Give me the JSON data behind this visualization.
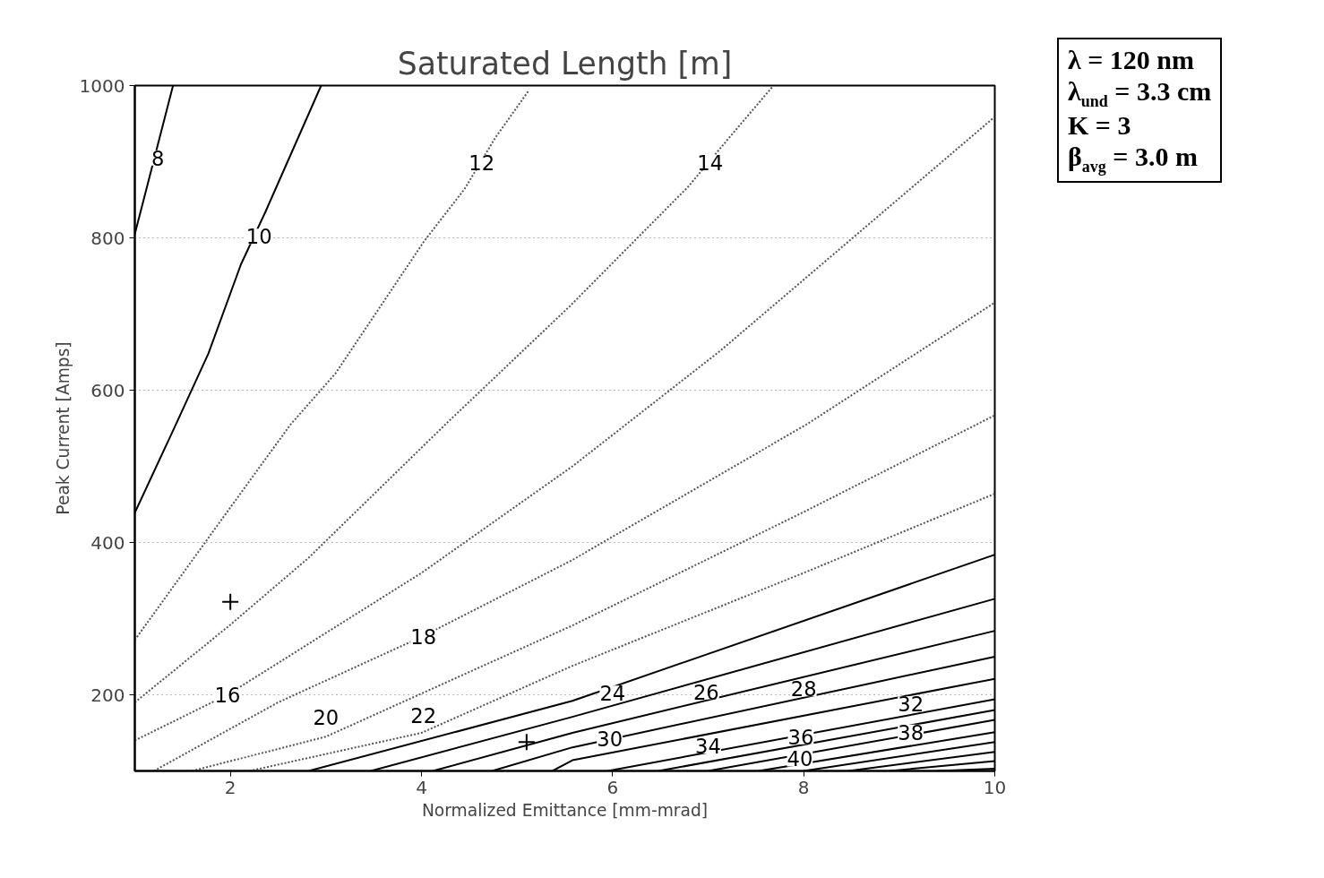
{
  "chart_data": {
    "type": "line",
    "title": "Saturated Length [m]",
    "xlabel": "Normalized Emittance [mm-mrad]",
    "ylabel": "Peak Current [Amps]",
    "xlim": [
      1,
      10
    ],
    "ylim": [
      100,
      1000
    ],
    "xticks": [
      2,
      4,
      6,
      8,
      10
    ],
    "yticks": [
      200,
      400,
      600,
      800,
      1000
    ],
    "grid": "y",
    "series": [
      {
        "color": "#000000",
        "line_style": "solid",
        "x": [
          1.0,
          1.4
        ],
        "values": [
          805,
          1000
        ]
      },
      {
        "color": "#000000",
        "line_style": "solid",
        "x": [
          1.0,
          1.4,
          1.77,
          2.11,
          2.37,
          2.95
        ],
        "values": [
          439,
          547,
          648,
          765,
          835,
          1000
        ]
      },
      {
        "color": "#555555",
        "line_style": "dotted",
        "x": [
          1.0,
          2.0,
          2.63,
          3.1,
          4.03,
          4.45,
          4.77,
          5.12
        ],
        "values": [
          272,
          446,
          555,
          622,
          796,
          864,
          931,
          993
        ]
      },
      {
        "color": "#555555",
        "line_style": "dotted",
        "x": [
          1.0,
          2.0,
          2.82,
          4.25,
          5.55,
          6.79,
          7.21,
          7.67
        ],
        "values": [
          190,
          292,
          380,
          555,
          710,
          867,
          930,
          998
        ]
      },
      {
        "color": "#555555",
        "line_style": "dotted",
        "x": [
          1.0,
          1.97,
          4.0,
          5.58,
          7.13,
          10
        ],
        "values": [
          140,
          200,
          360,
          500,
          652,
          959
        ]
      },
      {
        "color": "#555555",
        "line_style": "dotted",
        "x": [
          1.2,
          2.5,
          4.0,
          5.58,
          8.03,
          10
        ],
        "values": [
          100,
          190,
          276,
          377,
          555,
          715
        ]
      },
      {
        "color": "#555555",
        "line_style": "dotted",
        "x": [
          1.6,
          3.0,
          5.58,
          8.0,
          10
        ],
        "values": [
          100,
          145,
          291,
          440,
          567
        ]
      },
      {
        "color": "#555555",
        "line_style": "dotted",
        "x": [
          2.2,
          4.0,
          5.58,
          8.0,
          10
        ],
        "values": [
          100,
          150,
          238,
          360,
          464
        ]
      },
      {
        "color": "#000000",
        "line_style": "solid",
        "x": [
          2.82,
          5.58,
          10
        ],
        "values": [
          100,
          192,
          384
        ]
      },
      {
        "color": "#000000",
        "line_style": "solid",
        "x": [
          3.47,
          5.58,
          10
        ],
        "values": [
          100,
          171,
          326
        ]
      },
      {
        "color": "#000000",
        "line_style": "solid",
        "x": [
          4.12,
          5.58,
          10
        ],
        "values": [
          100,
          150,
          284
        ]
      },
      {
        "color": "#000000",
        "line_style": "solid",
        "x": [
          4.74,
          5.58,
          10
        ],
        "values": [
          100,
          131,
          250
        ]
      },
      {
        "color": "#000000",
        "line_style": "solid",
        "x": [
          5.37,
          5.58,
          10
        ],
        "values": [
          100,
          114,
          221
        ]
      },
      {
        "color": "#000000",
        "line_style": "solid",
        "x": [
          5.95,
          10
        ],
        "values": [
          100,
          194
        ]
      },
      {
        "color": "#000000",
        "line_style": "solid",
        "x": [
          6.48,
          10
        ],
        "values": [
          100,
          180
        ]
      },
      {
        "color": "#000000",
        "line_style": "solid",
        "x": [
          7.0,
          10
        ],
        "values": [
          100,
          167
        ]
      },
      {
        "color": "#000000",
        "line_style": "solid",
        "x": [
          7.53,
          10
        ],
        "values": [
          100,
          151
        ]
      },
      {
        "color": "#000000",
        "line_style": "solid",
        "x": [
          8.0,
          10
        ],
        "values": [
          100,
          138
        ]
      },
      {
        "color": "#000000",
        "line_style": "solid",
        "x": [
          8.47,
          10
        ],
        "values": [
          100,
          125
        ]
      },
      {
        "color": "#000000",
        "line_style": "solid",
        "x": [
          8.9,
          10
        ],
        "values": [
          100,
          113
        ]
      },
      {
        "color": "#000000",
        "line_style": "solid",
        "x": [
          9.4,
          10
        ],
        "values": [
          100,
          103
        ]
      },
      {
        "type": "scatter",
        "marker": "cross",
        "color": "#000000",
        "x": [
          2.0,
          5.1
        ],
        "values": [
          322,
          138
        ]
      }
    ],
    "annotations": [
      {
        "text": "8",
        "x": 1.24,
        "y": 905
      },
      {
        "text": "10",
        "x": 2.3,
        "y": 802
      },
      {
        "text": "12",
        "x": 4.63,
        "y": 899
      },
      {
        "text": "14",
        "x": 7.02,
        "y": 899
      },
      {
        "text": "16",
        "x": 1.97,
        "y": 200
      },
      {
        "text": "18",
        "x": 4.02,
        "y": 276
      },
      {
        "text": "20",
        "x": 3.0,
        "y": 171
      },
      {
        "text": "22",
        "x": 4.02,
        "y": 173
      },
      {
        "text": "24",
        "x": 6.0,
        "y": 202
      },
      {
        "text": "26",
        "x": 6.98,
        "y": 204
      },
      {
        "text": "28",
        "x": 8.0,
        "y": 208
      },
      {
        "text": "30",
        "x": 5.97,
        "y": 142
      },
      {
        "text": "32",
        "x": 9.12,
        "y": 188
      },
      {
        "text": "34",
        "x": 7.0,
        "y": 133
      },
      {
        "text": "36",
        "x": 7.97,
        "y": 145
      },
      {
        "text": "38",
        "x": 9.12,
        "y": 151
      },
      {
        "text": "40",
        "x": 7.96,
        "y": 116
      },
      "λ = 120 nm",
      "λ$_{und}$ = 3.3 cm",
      "K = 3",
      "β$_{avg}$ = 3.0 m"
    ]
  }
}
